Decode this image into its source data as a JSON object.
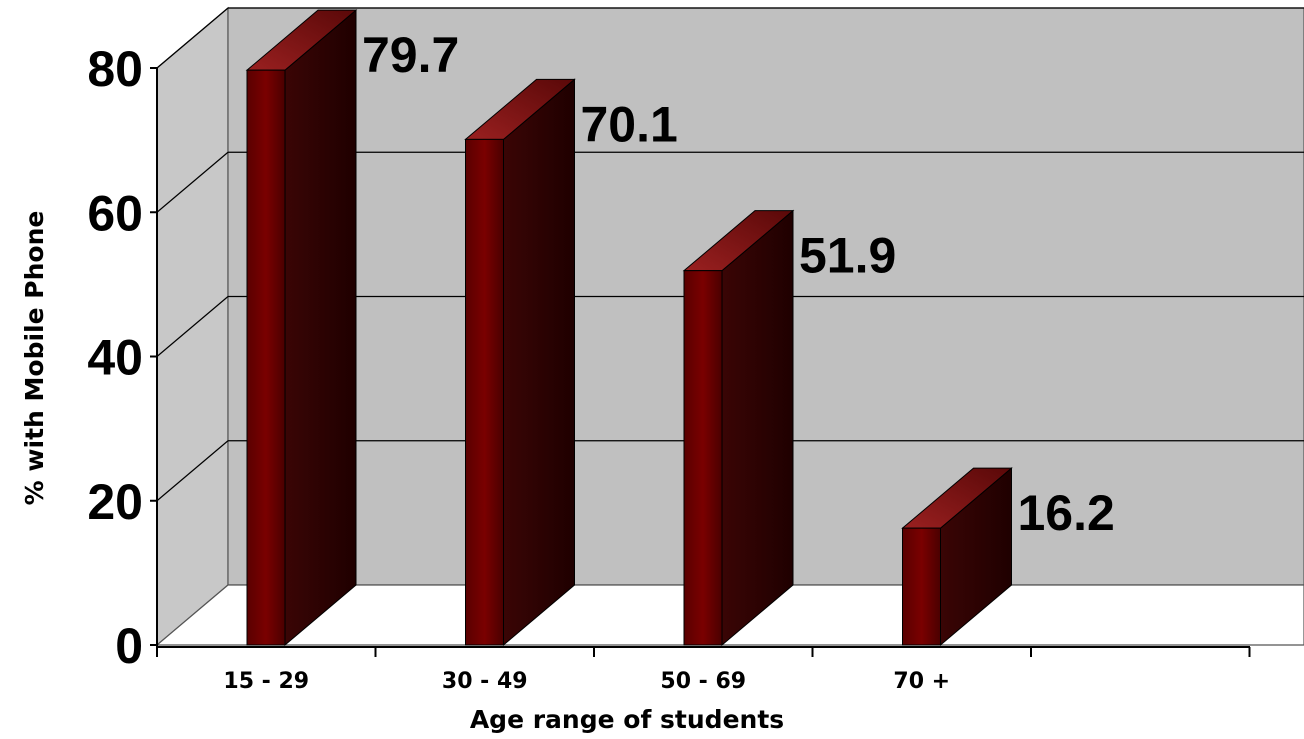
{
  "chart_data": {
    "type": "bar",
    "style": "3d-column",
    "categories": [
      "15 - 29",
      "30 - 49",
      "50 - 69",
      "70 +"
    ],
    "values": [
      79.7,
      70.1,
      51.9,
      16.2
    ],
    "data_labels": [
      "79.7",
      "70.1",
      "51.9",
      "16.2"
    ],
    "xlabel": "Age range of students",
    "ylabel": "% with Mobile Phone",
    "ylim": [
      0,
      80
    ],
    "yticks": [
      0,
      20,
      40,
      60,
      80
    ],
    "ytick_labels": [
      "0",
      "20",
      "40",
      "60",
      "80"
    ],
    "grid": true,
    "legend": "none",
    "colors": {
      "bar_front": "#7a0000",
      "bar_side": "#2a0000",
      "bar_top": "#8a1a1a",
      "back_wall": "#c0c0c0",
      "side_wall": "#c8c8c8",
      "floor": "#ffffff"
    }
  }
}
